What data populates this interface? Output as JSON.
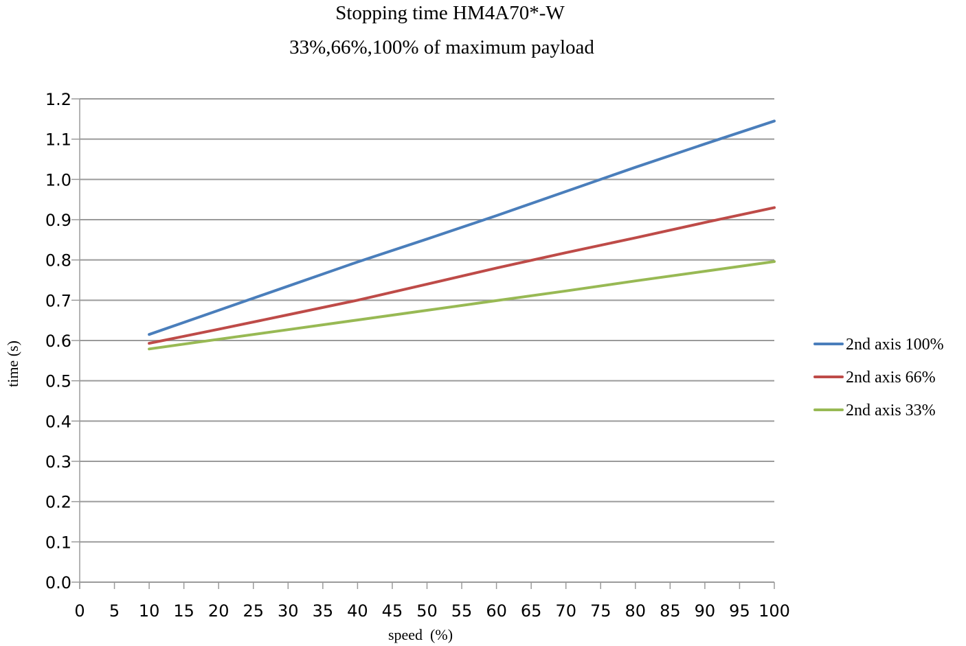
{
  "chart_data": {
    "type": "line",
    "title": "Stopping time HM4A70*-W",
    "subtitle": "33%,66%,100% of maximum payload",
    "xlabel": "speed  (%)",
    "ylabel": "time (s)",
    "xlim": [
      0,
      100
    ],
    "ylim": [
      0,
      1.2
    ],
    "x_ticks": [
      "0",
      "5",
      "10",
      "15",
      "20",
      "25",
      "30",
      "35",
      "40",
      "45",
      "50",
      "55",
      "60",
      "65",
      "70",
      "75",
      "80",
      "85",
      "90",
      "95",
      "100"
    ],
    "y_ticks": [
      "0.0",
      "0.1",
      "0.2",
      "0.3",
      "0.4",
      "0.5",
      "0.6",
      "0.7",
      "0.8",
      "0.9",
      "1.0",
      "1.1",
      "1.2"
    ],
    "grid": true,
    "legend_position": "right",
    "x": [
      10,
      20,
      30,
      40,
      50,
      60,
      70,
      80,
      90,
      100
    ],
    "series": [
      {
        "name": "2nd axis 100%",
        "color": "#4a7ebb",
        "values": [
          0.615,
          0.675,
          0.735,
          0.795,
          0.852,
          0.91,
          0.97,
          1.03,
          1.088,
          1.145
        ]
      },
      {
        "name": "2nd axis 66%",
        "color": "#be4b48",
        "values": [
          0.593,
          0.628,
          0.664,
          0.7,
          0.74,
          0.78,
          0.818,
          0.855,
          0.893,
          0.93
        ]
      },
      {
        "name": "2nd axis 33%",
        "color": "#98b954",
        "values": [
          0.579,
          0.603,
          0.627,
          0.651,
          0.675,
          0.699,
          0.723,
          0.748,
          0.772,
          0.796
        ]
      }
    ]
  }
}
